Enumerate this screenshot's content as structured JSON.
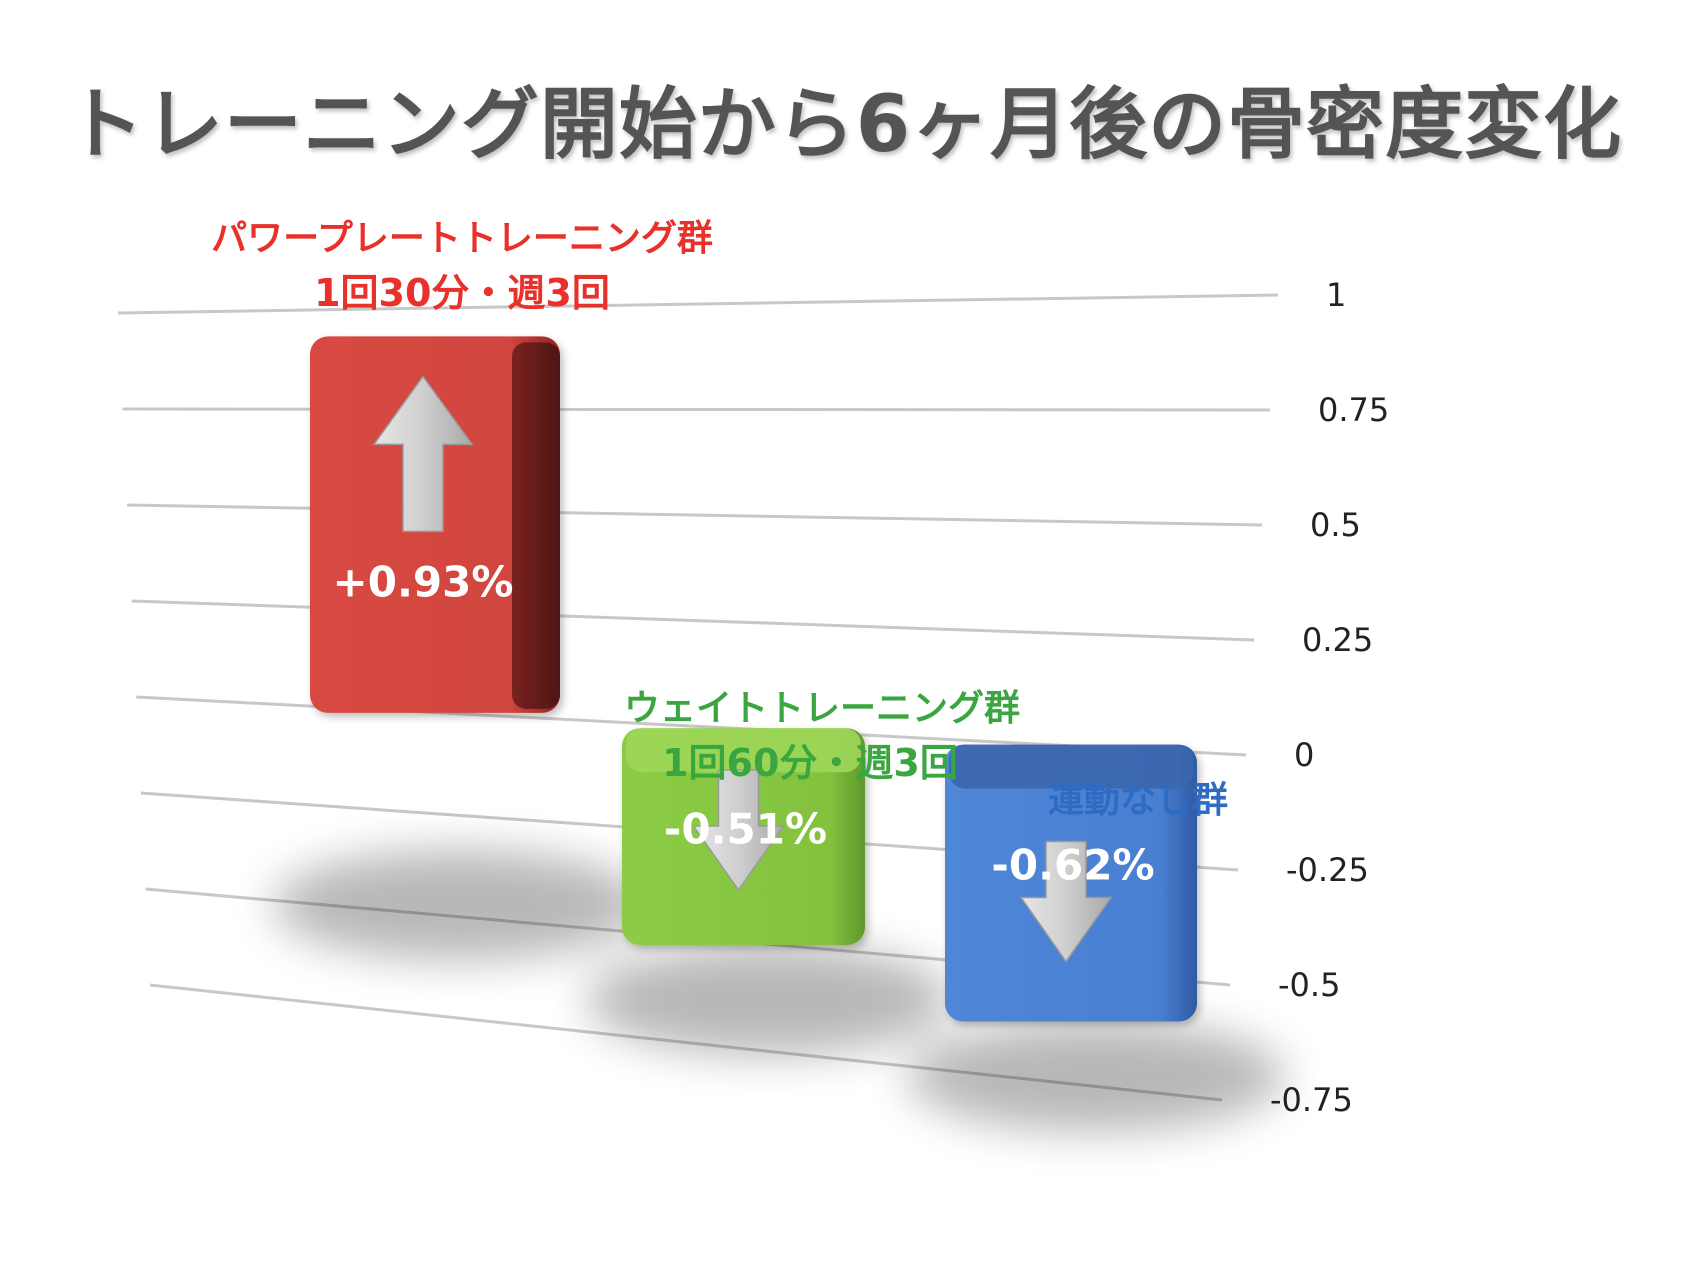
{
  "chart_data": {
    "type": "bar",
    "title": "トレーニング開始から6ヶ月後の骨密度変化",
    "categories": [
      {
        "line1": "パワープレートトレーニング群",
        "line2": "1回30分・週3回",
        "color": "#e8312a"
      },
      {
        "line1": "ウェイトトレーニング群",
        "line2": "1回60分・週3回",
        "color": "#3aa63f"
      },
      {
        "line1": "運動なし群",
        "line2": "",
        "color": "#2f6bc2"
      }
    ],
    "values": [
      0.93,
      -0.51,
      -0.62
    ],
    "value_labels": [
      "+0.93%",
      "-0.51%",
      "-0.62%"
    ],
    "bar_colors": [
      "#d9463f",
      "#86c43f",
      "#4a7fd1"
    ],
    "yticks": [
      "1",
      "0.75",
      "0.5",
      "0.25",
      "0",
      "-0.25",
      "-0.5",
      "-0.75"
    ],
    "ylim": [
      -0.75,
      1
    ],
    "grid": true
  }
}
